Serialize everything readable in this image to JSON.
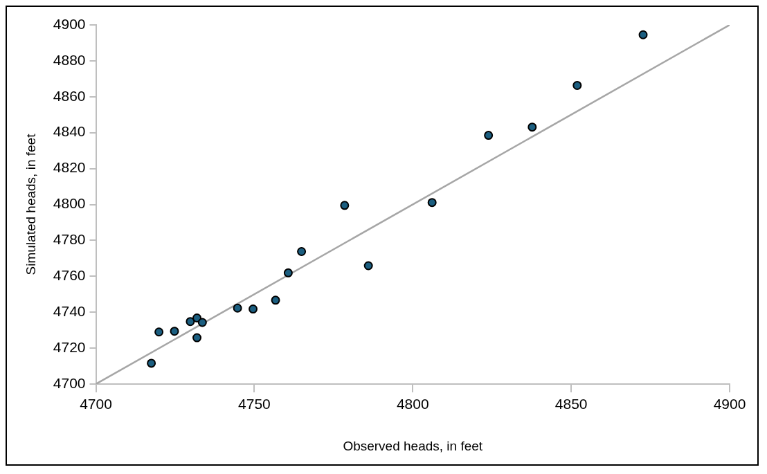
{
  "chart_data": {
    "type": "scatter",
    "xlabel": "Observed heads, in feet",
    "ylabel": "Simulated heads, in feet",
    "xlim": [
      4700,
      4900
    ],
    "xticks": [
      4700,
      4750,
      4800,
      4850,
      4900
    ],
    "ylim": [
      4700,
      4900
    ],
    "yticks": [
      4700,
      4720,
      4740,
      4760,
      4780,
      4800,
      4820,
      4840,
      4860,
      4880,
      4900
    ],
    "grid": false,
    "legend": false,
    "series": [
      {
        "marker": "circle",
        "color": "#1b5e80",
        "x": [
          4717.5,
          4719.9,
          4724.8,
          4729.8,
          4731.9,
          4733.6,
          4731.9,
          4744.7,
          4749.6,
          4756.7,
          4760.7,
          4764.9,
          4778.5,
          4786.0,
          4806.1,
          4823.9,
          4837.7,
          4851.9,
          4872.7
        ],
        "values": [
          4711.6,
          4729.0,
          4729.4,
          4734.8,
          4736.8,
          4734.3,
          4725.8,
          4742.3,
          4741.8,
          4746.7,
          4761.9,
          4773.8,
          4799.5,
          4765.9,
          4801.1,
          4838.5,
          4843.1,
          4866.3,
          4894.5
        ]
      },
      {
        "type": "line",
        "marker": "none",
        "color": "#a6a6a6",
        "x": [
          4700,
          4900
        ],
        "values": [
          4700,
          4900
        ]
      }
    ]
  }
}
